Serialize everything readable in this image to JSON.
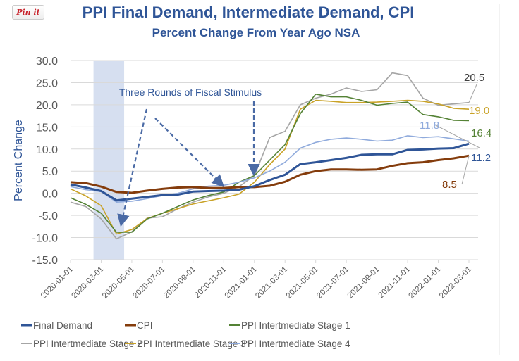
{
  "pin_button": "Pin it",
  "chart_data": {
    "type": "line",
    "title": "PPI Final Demand, Intermediate Demand, CPI",
    "subtitle": "Percent Change From Year Ago NSA",
    "xlabel": "",
    "ylabel": "Percent Change",
    "ylim": [
      -15,
      30
    ],
    "yticks": [
      "30.0",
      "25.0",
      "20.0",
      "15.0",
      "10.0",
      "5.0",
      "0.0",
      "-5.0",
      "-10.0",
      "-15.0"
    ],
    "ytick_values": [
      30,
      25,
      20,
      15,
      10,
      5,
      0,
      -5,
      -10,
      -15
    ],
    "xtick_labels": [
      "2020-01-01",
      "2020-03-01",
      "2020-05-01",
      "2020-07-01",
      "2020-09-01",
      "2020-11-01",
      "2021-01-01",
      "2021-03-01",
      "2021-05-01",
      "2021-07-01",
      "2021-09-01",
      "2021-11-01",
      "2022-01-01",
      "2022-03-01"
    ],
    "grid": true,
    "legend_position": "bottom",
    "shaded_period": {
      "start_index": 1.5,
      "end_index": 3.5
    },
    "annotation": "Three Rounds of Fiscal Stimulus",
    "series": [
      {
        "name": "Final Demand",
        "color": "#2f5597",
        "width": 3,
        "end_label": "11.2",
        "values": [
          2.0,
          1.3,
          0.5,
          -1.6,
          -1.2,
          -0.8,
          -0.4,
          -0.3,
          0.4,
          0.5,
          0.6,
          0.8,
          1.6,
          3.0,
          4.2,
          6.6,
          7.0,
          7.5,
          8.0,
          8.7,
          8.8,
          8.8,
          9.8,
          9.9,
          10.1,
          10.2,
          11.2
        ]
      },
      {
        "name": "CPI",
        "color": "#843c0c",
        "width": 3,
        "end_label": "8.5",
        "values": [
          2.5,
          2.3,
          1.5,
          0.3,
          0.1,
          0.6,
          1.0,
          1.3,
          1.4,
          1.2,
          1.2,
          1.4,
          1.4,
          1.7,
          2.6,
          4.2,
          5.0,
          5.4,
          5.4,
          5.3,
          5.4,
          6.2,
          6.8,
          7.0,
          7.5,
          7.9,
          8.5
        ]
      },
      {
        "name": "PPI Intertmediate Stage 1",
        "color": "#548235",
        "width": 1.6,
        "end_label": "16.4",
        "values": [
          -1.0,
          -2.5,
          -4.5,
          -8.8,
          -8.8,
          -5.8,
          -4.5,
          -3.0,
          -1.5,
          -0.5,
          0.3,
          2.5,
          4.0,
          7.5,
          11.0,
          18.0,
          22.4,
          21.8,
          21.8,
          21.0,
          19.9,
          20.3,
          20.6,
          17.8,
          17.3,
          16.5,
          16.4
        ]
      },
      {
        "name": "PPI Intertmediate Stage 2",
        "color": "#a5a5a5",
        "width": 1.6,
        "end_label": "20.5",
        "values": [
          -2.0,
          -3.0,
          -5.8,
          -10.3,
          -8.7,
          -5.6,
          -5.3,
          -3.5,
          -2.0,
          -0.8,
          0.0,
          1.5,
          4.0,
          12.6,
          14.0,
          20.0,
          21.5,
          22.4,
          23.8,
          23.0,
          23.4,
          27.2,
          26.6,
          21.5,
          19.9,
          20.2,
          20.5
        ]
      },
      {
        "name": "PPI Intertmediate Stage 3",
        "color": "#c9a227",
        "width": 1.6,
        "end_label": "19.0",
        "values": [
          1.0,
          -0.6,
          -2.8,
          -9.2,
          -8.2,
          -5.7,
          -4.5,
          -3.5,
          -2.4,
          -1.7,
          -1.0,
          -0.2,
          2.5,
          6.5,
          10.0,
          19.0,
          21.0,
          20.8,
          20.5,
          20.5,
          20.6,
          20.8,
          21.0,
          20.8,
          20.2,
          19.2,
          19.0
        ]
      },
      {
        "name": "PPI Intertmediate Stage 4",
        "color": "#8faadc",
        "width": 1.6,
        "end_label": "11.8",
        "values": [
          1.5,
          0.8,
          0.4,
          -2.0,
          -1.8,
          -1.2,
          -0.5,
          0.0,
          1.0,
          1.6,
          1.8,
          2.5,
          3.5,
          5.0,
          7.0,
          10.2,
          11.5,
          12.2,
          12.5,
          12.2,
          11.8,
          12.0,
          13.0,
          12.6,
          12.8,
          12.3,
          11.8
        ]
      }
    ]
  }
}
